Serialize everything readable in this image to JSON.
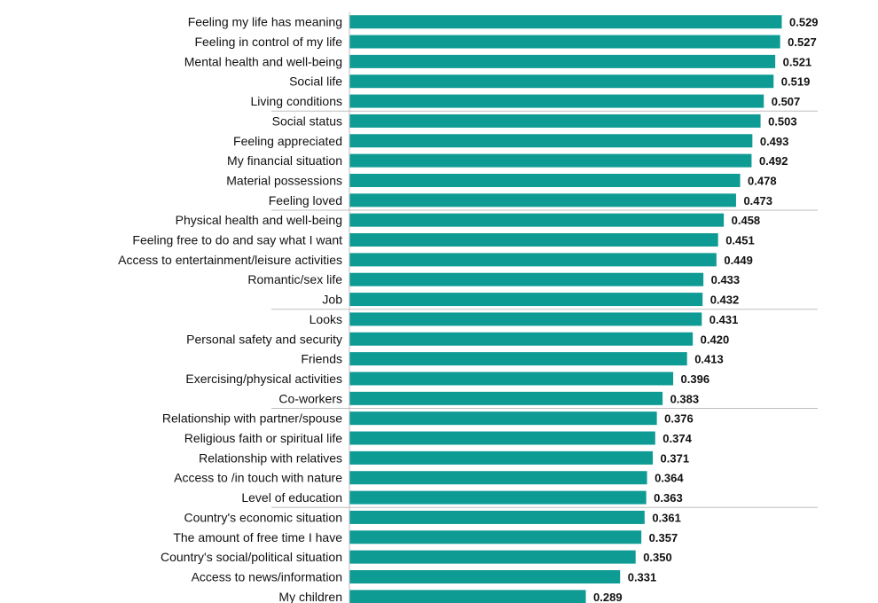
{
  "chart_data": {
    "type": "bar",
    "orientation": "horizontal",
    "bar_color": "#0e9b94",
    "separator_color": "#bfbfbf",
    "categories": [
      "Feeling my life has meaning",
      "Feeling in control of my life",
      "Mental health and well-being",
      "Social life",
      "Living conditions",
      "Social status",
      "Feeling appreciated",
      "My financial situation",
      "Material possessions",
      "Feeling loved",
      "Physical health and well-being",
      "Feeling free to do and say what I want",
      "Access to entertainment/leisure activities",
      "Romantic/sex life",
      "Job",
      "Looks",
      "Personal safety and security",
      "Friends",
      "Exercising/physical activities",
      "Co-workers",
      "Relationship with partner/spouse",
      "Religious faith or spiritual life",
      "Relationship with relatives",
      "Access to /in touch with nature",
      "Level of education",
      "Country's economic situation",
      "The amount of free time I have",
      "Country's social/political situation",
      "Access to news/information",
      "My children"
    ],
    "values": [
      0.529,
      0.527,
      0.521,
      0.519,
      0.507,
      0.503,
      0.493,
      0.492,
      0.478,
      0.473,
      0.458,
      0.451,
      0.449,
      0.433,
      0.432,
      0.431,
      0.42,
      0.413,
      0.396,
      0.383,
      0.376,
      0.374,
      0.371,
      0.364,
      0.363,
      0.361,
      0.357,
      0.35,
      0.331,
      0.289
    ],
    "value_labels": [
      "0.529",
      "0.527",
      "0.521",
      "0.519",
      "0.507",
      "0.503",
      "0.493",
      "0.492",
      "0.478",
      "0.473",
      "0.458",
      "0.451",
      "0.449",
      "0.433",
      "0.432",
      "0.431",
      "0.420",
      "0.413",
      "0.396",
      "0.383",
      "0.376",
      "0.374",
      "0.371",
      "0.364",
      "0.363",
      "0.361",
      "0.357",
      "0.350",
      "0.331",
      "0.289"
    ],
    "group_size": 5,
    "xlim": [
      0,
      0.529
    ],
    "grid": false,
    "legend": "none"
  }
}
